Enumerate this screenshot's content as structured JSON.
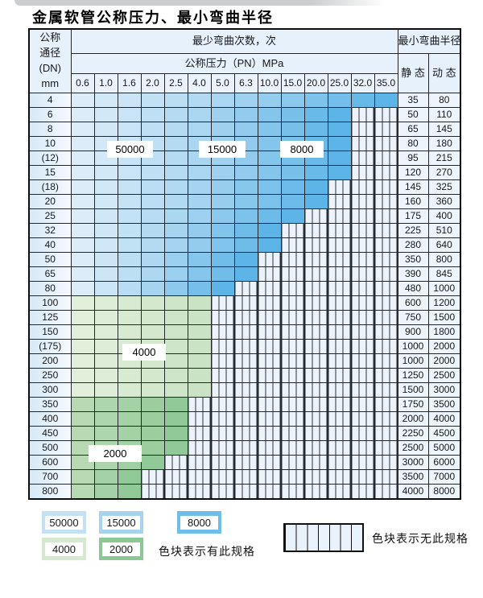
{
  "title": "金属软管公称压力、最小弯曲半径",
  "table": {
    "header": {
      "dn_lines": [
        "公称",
        "通径",
        "(DN)",
        "mm"
      ],
      "bend_times": "最少弯曲次数，次",
      "pressure": "公称压力（PN）MPa",
      "min_radius": "最小弯曲半径",
      "static": "静 态",
      "dynamic": "动 态",
      "pressures": [
        "0.6",
        "1.0",
        "1.6",
        "2.0",
        "2.5",
        "4.0",
        "5.0",
        "6.3",
        "10.0",
        "15.0",
        "20.0",
        "25.0",
        "32.0",
        "35.0"
      ]
    },
    "rows": [
      {
        "dn": "4",
        "span": 14,
        "zone": "blue",
        "static": "35",
        "dynamic": "80"
      },
      {
        "dn": "6",
        "span": 12,
        "zone": "blue",
        "static": "50",
        "dynamic": "110"
      },
      {
        "dn": "8",
        "span": 12,
        "zone": "blue",
        "static": "65",
        "dynamic": "145"
      },
      {
        "dn": "10",
        "span": 12,
        "zone": "blue",
        "static": "80",
        "dynamic": "180"
      },
      {
        "dn": "(12)",
        "span": 12,
        "zone": "blue",
        "static": "95",
        "dynamic": "215"
      },
      {
        "dn": "15",
        "span": 12,
        "zone": "blue",
        "static": "120",
        "dynamic": "270"
      },
      {
        "dn": "(18)",
        "span": 11,
        "zone": "blue",
        "static": "145",
        "dynamic": "325"
      },
      {
        "dn": "20",
        "span": 11,
        "zone": "blue",
        "static": "160",
        "dynamic": "360"
      },
      {
        "dn": "25",
        "span": 10,
        "zone": "blue",
        "static": "175",
        "dynamic": "400"
      },
      {
        "dn": "32",
        "span": 9,
        "zone": "blue",
        "static": "225",
        "dynamic": "510"
      },
      {
        "dn": "40",
        "span": 9,
        "zone": "blue",
        "static": "280",
        "dynamic": "640"
      },
      {
        "dn": "50",
        "span": 8,
        "zone": "blue",
        "static": "350",
        "dynamic": "800"
      },
      {
        "dn": "65",
        "span": 8,
        "zone": "blue",
        "static": "390",
        "dynamic": "845"
      },
      {
        "dn": "80",
        "span": 7,
        "zone": "blue",
        "static": "480",
        "dynamic": "1000"
      },
      {
        "dn": "100",
        "span": 6,
        "zone": "green4000",
        "static": "600",
        "dynamic": "1200"
      },
      {
        "dn": "125",
        "span": 6,
        "zone": "green4000",
        "static": "750",
        "dynamic": "1500"
      },
      {
        "dn": "150",
        "span": 6,
        "zone": "green4000",
        "static": "900",
        "dynamic": "1800"
      },
      {
        "dn": "(175)",
        "span": 6,
        "zone": "green4000",
        "static": "1000",
        "dynamic": "2000"
      },
      {
        "dn": "200",
        "span": 6,
        "zone": "green4000",
        "static": "1000",
        "dynamic": "2000"
      },
      {
        "dn": "250",
        "span": 6,
        "zone": "green4000",
        "static": "1250",
        "dynamic": "2500"
      },
      {
        "dn": "300",
        "span": 6,
        "zone": "green4000",
        "static": "1500",
        "dynamic": "3000"
      },
      {
        "dn": "350",
        "span": 5,
        "zone": "green2000",
        "static": "1750",
        "dynamic": "3500"
      },
      {
        "dn": "400",
        "span": 5,
        "zone": "green2000",
        "static": "2000",
        "dynamic": "4000"
      },
      {
        "dn": "450",
        "span": 5,
        "zone": "green2000",
        "static": "2250",
        "dynamic": "4500"
      },
      {
        "dn": "500",
        "span": 5,
        "zone": "green2000",
        "static": "2500",
        "dynamic": "5000"
      },
      {
        "dn": "600",
        "span": 4,
        "zone": "green2000",
        "static": "3000",
        "dynamic": "6000"
      },
      {
        "dn": "700",
        "span": 3,
        "zone": "green2000",
        "static": "3500",
        "dynamic": "7000"
      },
      {
        "dn": "800",
        "span": 3,
        "zone": "green2000",
        "static": "4000",
        "dynamic": "8000"
      }
    ]
  },
  "overlays": [
    "50000",
    "15000",
    "8000",
    "4000",
    "2000"
  ],
  "colors": {
    "blue": [
      "#dcedf9",
      "#a6d4f0",
      "#5cb4e7"
    ],
    "green4000": [
      "#e1efdb",
      "#d6e9d0",
      "#cbe3c5"
    ],
    "green2000": [
      "#b8dab3",
      "#a4d1a5",
      "#92c998"
    ],
    "nospec_bg": "#edf3fb",
    "grid": "#23272c"
  },
  "legend": {
    "swatches": [
      {
        "value": "50000",
        "color": "#c5e2f5"
      },
      {
        "value": "15000",
        "color": "#a8d3ef"
      },
      {
        "value": "8000",
        "color": "#6fbde9"
      },
      {
        "value": "4000",
        "color": "#d4e9d0"
      },
      {
        "value": "2000",
        "color": "#8cc893"
      }
    ],
    "has_spec_label": "色块表示有此规格",
    "no_spec_label": "色块表示无此规格"
  }
}
